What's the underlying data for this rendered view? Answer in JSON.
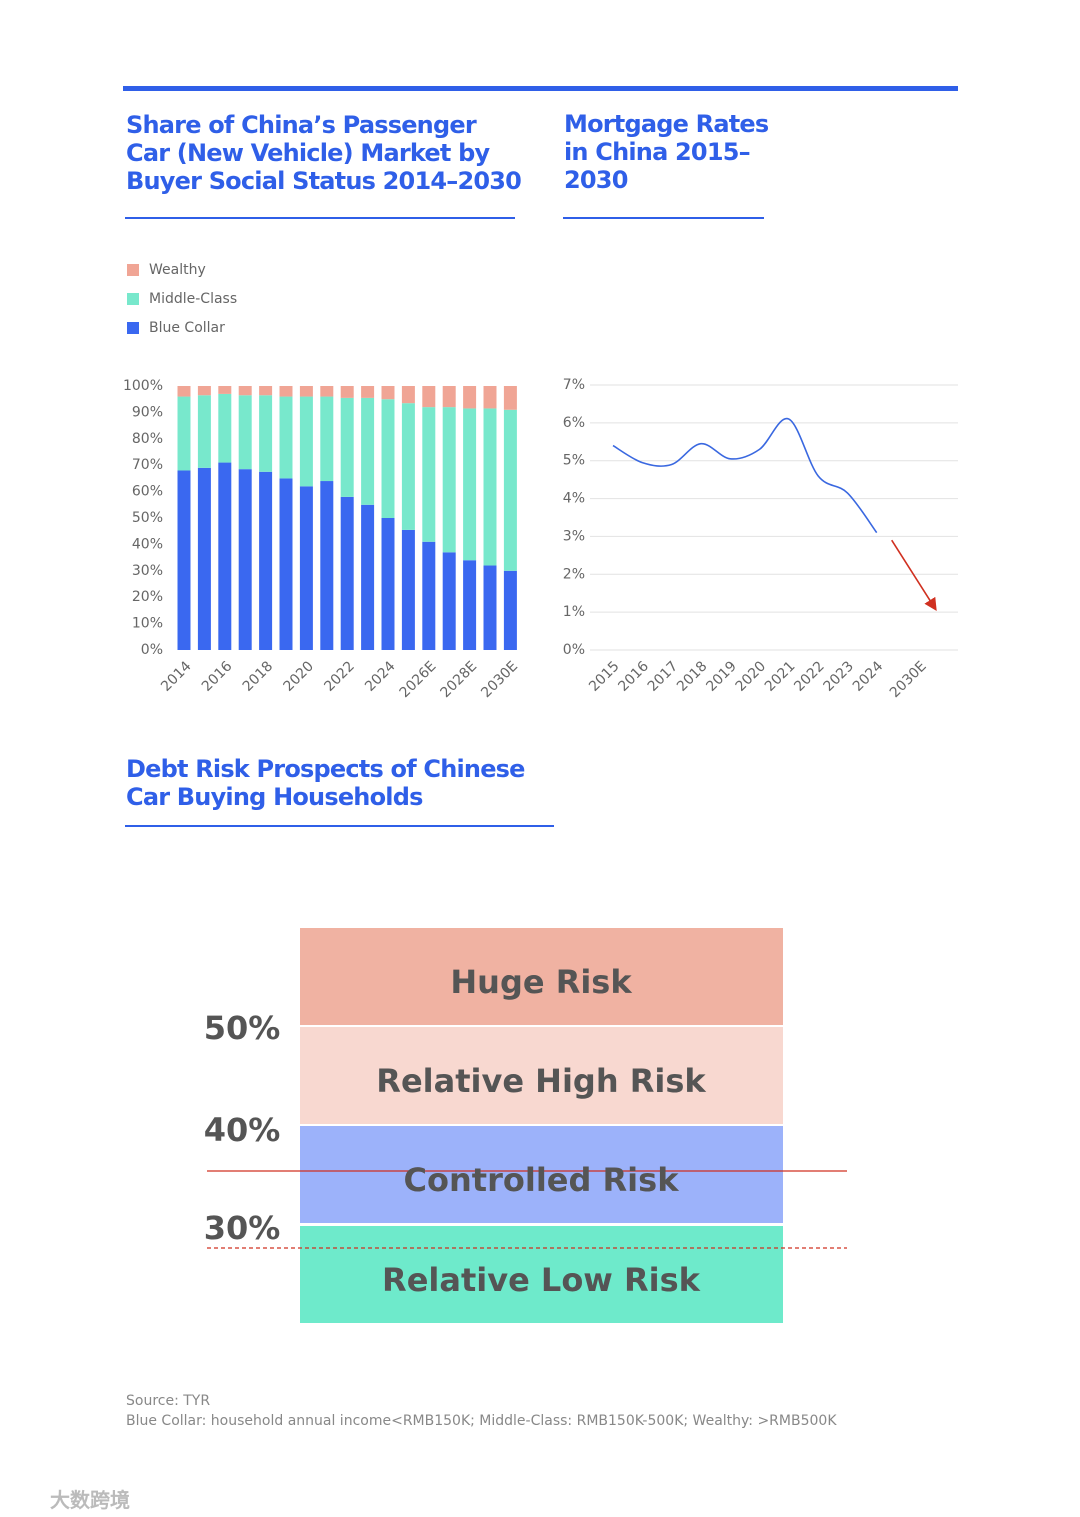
{
  "chart_data": [
    {
      "type": "stacked_bar",
      "title": "Share of China’s Passenger Car (New Vehicle) Market by Buyer Social Status 2014–2030",
      "categories": [
        "2014",
        null,
        "2016",
        null,
        "2018",
        null,
        "2020",
        null,
        "2022",
        null,
        "2024",
        null,
        "2026E",
        null,
        "2028E",
        null,
        "2030E"
      ],
      "series": [
        {
          "name": "Blue Collar",
          "color": "#3a68f0",
          "values": [
            68,
            69,
            71,
            68.5,
            67.5,
            65,
            62,
            64,
            58,
            55,
            50,
            45.5,
            41,
            37,
            34,
            32,
            30
          ]
        },
        {
          "name": "Middle-Class",
          "color": "#78e8cc",
          "values": [
            28,
            27.5,
            26,
            28,
            29,
            31,
            34,
            32,
            37.5,
            40.5,
            45,
            48,
            51,
            55,
            57.5,
            59.5,
            61
          ]
        },
        {
          "name": "Wealthy",
          "color": "#f0a595",
          "values": [
            4,
            3.5,
            3,
            3.5,
            3.5,
            4,
            4,
            4,
            4.5,
            4.5,
            5,
            6.5,
            8,
            8,
            8.5,
            8.5,
            9
          ]
        }
      ],
      "ylim": [
        0,
        100
      ],
      "yticks": [
        {
          "value": 0,
          "label": "0%"
        },
        {
          "value": 10,
          "label": "10%"
        },
        {
          "value": 20,
          "label": "20%"
        },
        {
          "value": 30,
          "label": "30%"
        },
        {
          "value": 40,
          "label": "40%"
        },
        {
          "value": 50,
          "label": "50%"
        },
        {
          "value": 60,
          "label": "60%"
        },
        {
          "value": 70,
          "label": "70%"
        },
        {
          "value": 80,
          "label": "80%"
        },
        {
          "value": 90,
          "label": "90%"
        },
        {
          "value": 100,
          "label": "100%"
        }
      ],
      "legend": "top-left",
      "grid": false
    },
    {
      "type": "line",
      "title": "Mortgage Rates in China 2015–2030",
      "categories": [
        "2015",
        "2016",
        "2017",
        "2018",
        "2019",
        "2020",
        "2021",
        "2022",
        "2023",
        "2024",
        "2030E"
      ],
      "series": [
        {
          "color": "#3a68e0",
          "values": [
            5.4,
            4.95,
            4.9,
            5.45,
            5.05,
            5.3,
            6.1,
            4.6,
            4.15,
            3.1,
            null
          ]
        },
        {
          "color": "#d03020",
          "values": [
            null,
            null,
            null,
            null,
            null,
            null,
            null,
            null,
            null,
            2.9,
            1.1
          ]
        }
      ],
      "ylim": [
        0,
        7
      ],
      "yticks": [
        {
          "value": 0,
          "label": "0%"
        },
        {
          "value": 1,
          "label": "1%"
        },
        {
          "value": 2,
          "label": "2%"
        },
        {
          "value": 3,
          "label": "3%"
        },
        {
          "value": 4,
          "label": "4%"
        },
        {
          "value": 5,
          "label": "5%"
        },
        {
          "value": 6,
          "label": "6%"
        },
        {
          "value": 7,
          "label": "7%"
        }
      ],
      "grid": true
    }
  ],
  "risk_diagram": {
    "title": "Debt Risk Prospects of Chinese Car Buying Households",
    "levels": [
      "Huge Risk",
      "Relative High Risk",
      "Controlled Risk",
      "Relative Low Risk"
    ],
    "thresholds": [
      "50%",
      "40%",
      "30%"
    ]
  },
  "footer": {
    "source": "Source: TYR",
    "note": "Blue Collar: household annual income<RMB150K; Middle-Class: RMB150K-500K; Wealthy: >RMB500K"
  },
  "watermark": "大数跨境"
}
